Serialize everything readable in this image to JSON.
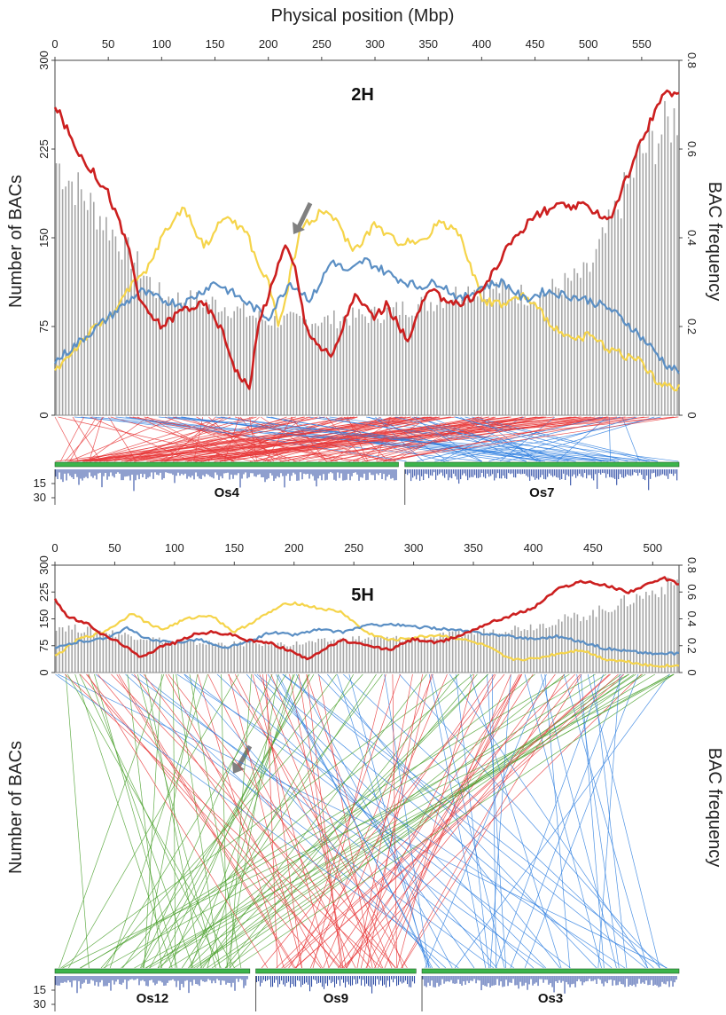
{
  "figure": {
    "top_axis_title": "Physical position (Mbp)",
    "left_axis_title": "Number of BACs",
    "right_axis_title": "BAC frequency",
    "colors": {
      "bars": "#a6a6a6",
      "red_line": "#cc1f1f",
      "yellow_line": "#f5d44a",
      "blue_line": "#5b8fc4",
      "synteny_red": "#e8393a",
      "synteny_blue": "#2f7fe0",
      "synteny_green": "#4aa02c",
      "density_blue": "#1f3f9e",
      "chromosome_green": "#3cb44b",
      "arrow": "#808080"
    }
  },
  "chart_data": [
    {
      "type": "bar",
      "panel_label": "2H",
      "x_ticks": [
        0,
        50,
        100,
        150,
        200,
        250,
        300,
        350,
        400,
        450,
        500,
        550
      ],
      "xlim": [
        0,
        585
      ],
      "ylim_left": [
        0,
        300
      ],
      "ylim_right": [
        0,
        0.8
      ],
      "left_ticks": [
        0,
        75,
        150,
        225,
        300
      ],
      "right_ticks": [
        0,
        0.2,
        0.4,
        0.6,
        0.8
      ],
      "bars": {
        "x": [
          0,
          50,
          100,
          150,
          200,
          250,
          300,
          350,
          400,
          450,
          500,
          550,
          585
        ],
        "values": [
          215,
          160,
          100,
          95,
          80,
          80,
          85,
          95,
          110,
          100,
          120,
          220,
          255
        ]
      },
      "series": [
        {
          "color_key": "red_line",
          "x": [
            0,
            20,
            50,
            70,
            80,
            100,
            120,
            140,
            155,
            170,
            182,
            192,
            205,
            215,
            225,
            235,
            250,
            260,
            280,
            300,
            310,
            330,
            350,
            380,
            400,
            430,
            450,
            470,
            500,
            520,
            550,
            565,
            575,
            585
          ],
          "y": [
            0.7,
            0.6,
            0.5,
            0.37,
            0.25,
            0.2,
            0.24,
            0.25,
            0.2,
            0.1,
            0.06,
            0.22,
            0.3,
            0.39,
            0.33,
            0.2,
            0.15,
            0.13,
            0.27,
            0.22,
            0.25,
            0.17,
            0.28,
            0.25,
            0.28,
            0.4,
            0.45,
            0.47,
            0.47,
            0.44,
            0.62,
            0.7,
            0.73,
            0.72
          ]
        },
        {
          "color_key": "yellow_line",
          "x": [
            0,
            30,
            50,
            75,
            85,
            100,
            120,
            140,
            160,
            180,
            190,
            200,
            210,
            230,
            250,
            260,
            280,
            300,
            320,
            350,
            360,
            380,
            400,
            420,
            440,
            460,
            480,
            500,
            520,
            550,
            565,
            580,
            585
          ],
          "y": [
            0.1,
            0.18,
            0.22,
            0.3,
            0.32,
            0.4,
            0.47,
            0.38,
            0.45,
            0.41,
            0.34,
            0.3,
            0.2,
            0.42,
            0.46,
            0.45,
            0.37,
            0.43,
            0.39,
            0.4,
            0.44,
            0.41,
            0.26,
            0.25,
            0.27,
            0.22,
            0.17,
            0.18,
            0.15,
            0.12,
            0.07,
            0.06,
            0.06
          ]
        },
        {
          "color_key": "blue_line",
          "x": [
            0,
            20,
            50,
            80,
            100,
            120,
            150,
            170,
            200,
            220,
            240,
            260,
            275,
            290,
            320,
            340,
            360,
            380,
            400,
            420,
            440,
            460,
            480,
            500,
            520,
            540,
            560,
            575,
            585
          ],
          "y": [
            0.12,
            0.16,
            0.22,
            0.28,
            0.26,
            0.25,
            0.3,
            0.27,
            0.22,
            0.3,
            0.26,
            0.35,
            0.32,
            0.35,
            0.31,
            0.29,
            0.3,
            0.26,
            0.29,
            0.3,
            0.26,
            0.28,
            0.27,
            0.26,
            0.24,
            0.2,
            0.15,
            0.11,
            0.1
          ]
        }
      ],
      "arrow_x": 235,
      "chromosomes": [
        {
          "label": "Os4",
          "start": 0,
          "end": 322
        },
        {
          "label": "Os7",
          "start": 328,
          "end": 585
        }
      ],
      "density_ticks": [
        15,
        30
      ]
    },
    {
      "type": "bar",
      "panel_label": "5H",
      "x_ticks": [
        0,
        50,
        100,
        150,
        200,
        250,
        300,
        350,
        400,
        450,
        500
      ],
      "xlim": [
        0,
        522
      ],
      "ylim_left": [
        0,
        300
      ],
      "ylim_right": [
        0,
        0.8
      ],
      "left_ticks": [
        0,
        75,
        150,
        225,
        300
      ],
      "right_ticks": [
        0,
        0.2,
        0.4,
        0.6,
        0.8
      ],
      "bars": {
        "x": [
          0,
          50,
          100,
          150,
          200,
          250,
          300,
          350,
          400,
          450,
          500,
          522
        ],
        "values": [
          130,
          110,
          85,
          80,
          80,
          95,
          95,
          110,
          130,
          165,
          225,
          255
        ]
      },
      "series": [
        {
          "color_key": "red_line",
          "x": [
            0,
            10,
            30,
            40,
            55,
            70,
            80,
            90,
            100,
            115,
            130,
            150,
            160,
            180,
            200,
            210,
            220,
            240,
            260,
            280,
            300,
            320,
            340,
            360,
            380,
            400,
            420,
            440,
            460,
            480,
            500,
            510,
            522
          ],
          "y": [
            0.55,
            0.42,
            0.35,
            0.28,
            0.22,
            0.12,
            0.15,
            0.2,
            0.22,
            0.28,
            0.3,
            0.28,
            0.24,
            0.22,
            0.15,
            0.1,
            0.15,
            0.24,
            0.2,
            0.17,
            0.25,
            0.22,
            0.28,
            0.36,
            0.42,
            0.48,
            0.62,
            0.68,
            0.65,
            0.6,
            0.67,
            0.7,
            0.66
          ]
        },
        {
          "color_key": "yellow_line",
          "x": [
            0,
            20,
            40,
            55,
            65,
            75,
            90,
            110,
            130,
            150,
            170,
            190,
            200,
            220,
            240,
            260,
            280,
            300,
            320,
            340,
            360,
            380,
            400,
            420,
            440,
            460,
            480,
            500,
            522
          ],
          "y": [
            0.12,
            0.25,
            0.3,
            0.38,
            0.45,
            0.38,
            0.32,
            0.4,
            0.43,
            0.3,
            0.4,
            0.5,
            0.52,
            0.48,
            0.45,
            0.3,
            0.24,
            0.26,
            0.28,
            0.25,
            0.2,
            0.1,
            0.1,
            0.14,
            0.17,
            0.1,
            0.08,
            0.05,
            0.05
          ]
        },
        {
          "color_key": "blue_line",
          "x": [
            0,
            20,
            40,
            60,
            80,
            100,
            120,
            140,
            160,
            180,
            200,
            220,
            240,
            260,
            280,
            300,
            320,
            340,
            360,
            380,
            400,
            420,
            440,
            460,
            480,
            500,
            522
          ],
          "y": [
            0.18,
            0.23,
            0.25,
            0.33,
            0.24,
            0.22,
            0.25,
            0.18,
            0.22,
            0.3,
            0.28,
            0.32,
            0.3,
            0.35,
            0.36,
            0.34,
            0.33,
            0.31,
            0.29,
            0.27,
            0.25,
            0.27,
            0.23,
            0.18,
            0.16,
            0.14,
            0.14
          ]
        }
      ],
      "arrow_x": 153,
      "chromosomes": [
        {
          "label": "Os12",
          "start": 0,
          "end": 163
        },
        {
          "label": "Os9",
          "start": 168,
          "end": 302
        },
        {
          "label": "Os3",
          "start": 307,
          "end": 522
        }
      ],
      "density_ticks": [
        15,
        30
      ]
    }
  ]
}
